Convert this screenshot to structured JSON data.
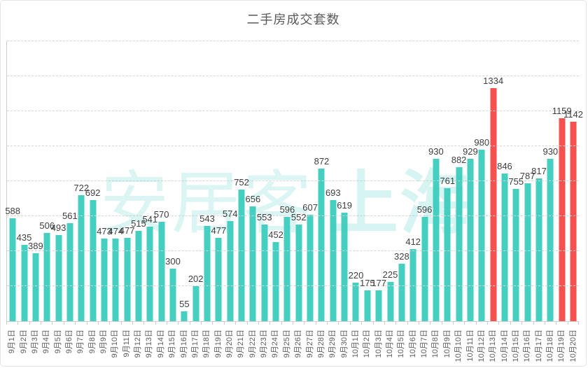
{
  "title": "二手房成交套数",
  "watermark": {
    "brand": "安居客",
    "city": "上海"
  },
  "colors": {
    "bar": "#45CFC1",
    "bar_highlight": "#F6504F",
    "gridline": "#d6d6d6",
    "axis": "#cccccc",
    "value_label": "#404040",
    "date_label": "#5e5e5e",
    "title": "#595959",
    "watermark": "rgba(69,207,193,0.20)"
  },
  "chart_data": {
    "type": "bar",
    "title": "二手房成交套数",
    "xlabel": "",
    "ylabel": "",
    "ylim": [
      0,
      1600
    ],
    "gridline_interval": 200,
    "grid": "dashed-horizontal",
    "legend": "none",
    "y_axis_labels_visible": false,
    "x_label_rotation": -90,
    "categories": [
      "9月1日",
      "9月2日",
      "9月3日",
      "9月4日",
      "9月5日",
      "9月6日",
      "9月7日",
      "9月8日",
      "9月9日",
      "9月10日",
      "9月11日",
      "9月12日",
      "9月13日",
      "9月14日",
      "9月15日",
      "9月16日",
      "9月17日",
      "9月18日",
      "9月19日",
      "9月20日",
      "9月21日",
      "9月22日",
      "9月23日",
      "9月24日",
      "9月25日",
      "9月26日",
      "9月27日",
      "9月28日",
      "9月29日",
      "9月30日",
      "10月1日",
      "10月2日",
      "10月3日",
      "10月4日",
      "10月5日",
      "10月6日",
      "10月7日",
      "10月8日",
      "10月9日",
      "10月10日",
      "10月11日",
      "10月12日",
      "10月13日",
      "10月14日",
      "10月15日",
      "10月16日",
      "10月17日",
      "10月18日",
      "10月19日",
      "10月20日"
    ],
    "values": [
      588,
      435,
      389,
      506,
      493,
      561,
      722,
      692,
      473,
      474,
      477,
      515,
      541,
      570,
      300,
      55,
      202,
      543,
      477,
      574,
      752,
      656,
      553,
      452,
      596,
      552,
      607,
      872,
      693,
      619,
      220,
      175,
      177,
      225,
      328,
      412,
      596,
      930,
      761,
      882,
      929,
      980,
      1334,
      846,
      755,
      787,
      817,
      930,
      1159,
      1142
    ],
    "highlight_indices": [
      42,
      48,
      49
    ],
    "bar_color": "#45CFC1",
    "highlight_color": "#F6504F"
  }
}
